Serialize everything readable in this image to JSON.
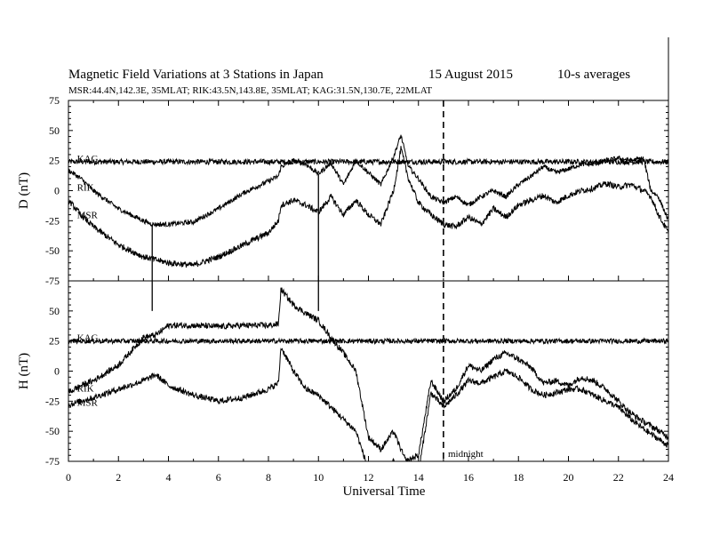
{
  "chart_data": {
    "type": "line",
    "title_parts": [
      "Magnetic Field Variations at 3 Stations in Japan",
      "15  August  2015",
      "10-s averages"
    ],
    "subtitle": "MSR:44.4N,142.3E, 35MLAT;  RIK:43.5N,143.8E, 35MLAT;  KAG:31.5N,130.7E, 22MLAT",
    "xlabel": "Universal Time",
    "x_ticks": [
      0,
      2,
      4,
      6,
      8,
      10,
      12,
      14,
      16,
      18,
      20,
      22,
      24
    ],
    "xlim": [
      0,
      24
    ],
    "midnight_label": "midnight",
    "midnight_x": 15,
    "panels": [
      {
        "ylabel": "D (nT)",
        "ylim": [
          -75,
          75
        ],
        "y_ticks": [
          75,
          50,
          25,
          0,
          -25,
          -50,
          -75
        ],
        "series": [
          {
            "name": "KAG",
            "label_at": [
              0.2,
              27
            ],
            "x": [
              0,
              24
            ],
            "y": [
              24,
              24
            ],
            "noise": 2.2
          },
          {
            "name": "RIK",
            "label_at": [
              0.2,
              3
            ],
            "x": [
              0,
              0.5,
              1,
              2,
              3,
              3.35,
              4,
              5,
              6,
              7,
              8,
              8.4,
              8.5,
              9,
              9.5,
              10,
              10.5,
              11,
              11.5,
              12,
              12.5,
              13,
              13.3,
              13.6,
              14,
              14.5,
              15,
              15.5,
              16,
              16.5,
              17,
              17.5,
              18,
              18.5,
              19,
              19.5,
              20,
              20.5,
              21,
              21.5,
              22,
              22.5,
              23,
              23.3,
              23.6,
              24
            ],
            "y": [
              17,
              10,
              0,
              -15,
              -25,
              -28,
              -28,
              -26,
              -15,
              -2,
              8,
              12,
              20,
              25,
              22,
              14,
              23,
              5,
              25,
              15,
              5,
              28,
              46,
              20,
              10,
              -5,
              -10,
              -5,
              -12,
              -5,
              0,
              -5,
              5,
              12,
              20,
              15,
              18,
              22,
              22,
              25,
              27,
              25,
              27,
              0,
              -5,
              -25
            ],
            "noise": 2.0
          },
          {
            "name": "MSR",
            "label_at": [
              0.2,
              -20
            ],
            "x": [
              0,
              0.5,
              1,
              2,
              3,
              4,
              5,
              6,
              7,
              8,
              8.4,
              8.5,
              9,
              9.5,
              10,
              10.5,
              11,
              11.5,
              12,
              12.5,
              13,
              13.3,
              13.6,
              14,
              14.5,
              15,
              15.5,
              16,
              16.5,
              17,
              17.5,
              18,
              18.5,
              19,
              19.5,
              20,
              20.5,
              21,
              21.5,
              22,
              22.5,
              23,
              23.3,
              23.6,
              24
            ],
            "y": [
              -8,
              -20,
              -30,
              -45,
              -55,
              -60,
              -62,
              -55,
              -45,
              -35,
              -25,
              -12,
              -8,
              -12,
              -18,
              -5,
              -20,
              -8,
              -20,
              -28,
              0,
              35,
              10,
              -10,
              -20,
              -28,
              -30,
              -22,
              -28,
              -15,
              -22,
              -12,
              -8,
              -4,
              -10,
              -4,
              0,
              2,
              6,
              3,
              5,
              0,
              -5,
              -20,
              -35
            ],
            "noise": 2.5
          }
        ],
        "spikes": [
          {
            "x": 3.35,
            "from": -28,
            "to": -100
          },
          {
            "x": 10.0,
            "from": 14,
            "to": -100
          }
        ]
      },
      {
        "ylabel": "H (nT)",
        "ylim": [
          -75,
          75
        ],
        "y_ticks": [
          75,
          50,
          25,
          0,
          -25,
          -50,
          -75
        ],
        "series": [
          {
            "name": "KAG",
            "label_at": [
              0.2,
              28
            ],
            "x": [
              0,
              24
            ],
            "y": [
              25,
              25
            ],
            "noise": 2.0
          },
          {
            "name": "RIK",
            "label_at": [
              0.2,
              -14
            ],
            "x": [
              0,
              0.5,
              1,
              2,
              3,
              3.5,
              4,
              5,
              6,
              7,
              8,
              8.4,
              8.5,
              9,
              9.5,
              10,
              10.5,
              11,
              11.5,
              12,
              12.5,
              13,
              13.5,
              14,
              14.5,
              15,
              15.5,
              16,
              16.5,
              17,
              17.5,
              18,
              18.5,
              19,
              19.5,
              20,
              20.5,
              21,
              21.5,
              22,
              22.5,
              23,
              23.5,
              24
            ],
            "y": [
              -18,
              -12,
              -8,
              5,
              28,
              30,
              38,
              38,
              37,
              38,
              38,
              39,
              68,
              55,
              48,
              42,
              28,
              15,
              0,
              -55,
              -65,
              -50,
              -75,
              -70,
              -8,
              -25,
              -15,
              5,
              0,
              10,
              15,
              10,
              3,
              -10,
              -8,
              -12,
              -5,
              -8,
              -15,
              -25,
              -35,
              -42,
              -48,
              -55
            ],
            "noise": 2.5
          },
          {
            "name": "MSR",
            "label_at": [
              0.2,
              -26
            ],
            "x": [
              0,
              0.5,
              1,
              2,
              3,
              3.5,
              4,
              5,
              6,
              7,
              8,
              8.4,
              8.5,
              9,
              9.5,
              10,
              10.5,
              11,
              11.5,
              12,
              12.5,
              13,
              13.5,
              14,
              14.5,
              15,
              15.5,
              16,
              16.5,
              17,
              17.5,
              18,
              18.5,
              19,
              19.5,
              20,
              20.5,
              21,
              21.5,
              22,
              22.5,
              23,
              23.5,
              24
            ],
            "y": [
              -28,
              -25,
              -22,
              -15,
              -8,
              -3,
              -12,
              -20,
              -25,
              -22,
              -15,
              -10,
              20,
              0,
              -15,
              -20,
              -30,
              -40,
              -50,
              -82,
              -90,
              -75,
              -95,
              -85,
              -18,
              -30,
              -20,
              -8,
              -10,
              -5,
              0,
              -5,
              -15,
              -20,
              -18,
              -15,
              -15,
              -20,
              -25,
              -30,
              -40,
              -48,
              -55,
              -62
            ],
            "noise": 2.5
          }
        ],
        "spikes": []
      }
    ]
  }
}
